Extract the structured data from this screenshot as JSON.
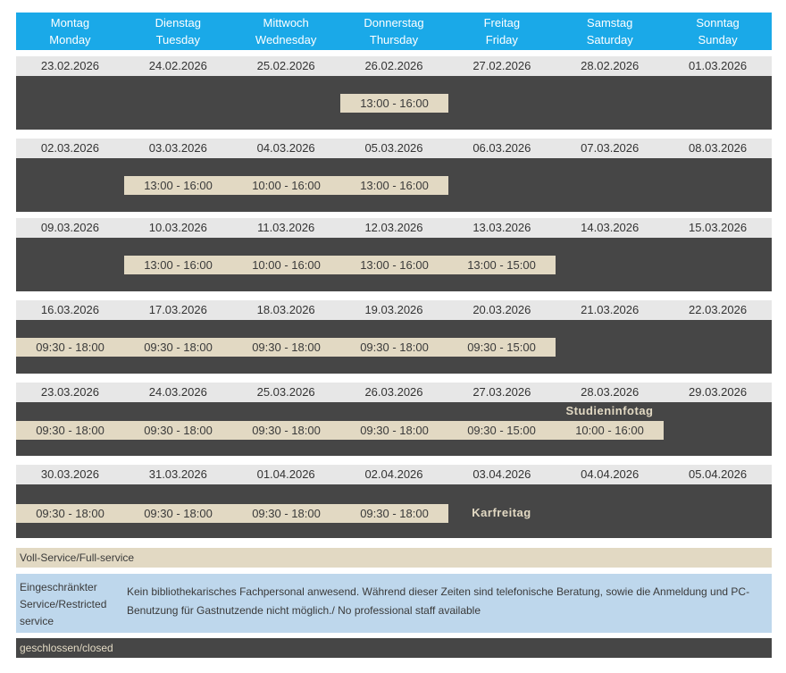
{
  "header": {
    "days": [
      {
        "de": "Montag",
        "en": "Monday"
      },
      {
        "de": "Dienstag",
        "en": "Tuesday"
      },
      {
        "de": "Mittwoch",
        "en": "Wednesday"
      },
      {
        "de": "Donnerstag",
        "en": "Thursday"
      },
      {
        "de": "Freitag",
        "en": "Friday"
      },
      {
        "de": "Samstag",
        "en": "Saturday"
      },
      {
        "de": "Sonntag",
        "en": "Sunday"
      }
    ]
  },
  "weeks": [
    {
      "dates": [
        "23.02.2026",
        "24.02.2026",
        "25.02.2026",
        "26.02.2026",
        "27.02.2026",
        "28.02.2026",
        "01.03.2026"
      ],
      "slots": [
        null,
        null,
        null,
        "13:00 - 16:00",
        null,
        null,
        null
      ],
      "notes": [
        null,
        null,
        null,
        null,
        null,
        null,
        null
      ]
    },
    {
      "dates": [
        "02.03.2026",
        "03.03.2026",
        "04.03.2026",
        "05.03.2026",
        "06.03.2026",
        "07.03.2026",
        "08.03.2026"
      ],
      "slots": [
        null,
        "13:00 - 16:00",
        "10:00 - 16:00",
        "13:00 - 16:00",
        null,
        null,
        null
      ],
      "notes": [
        null,
        null,
        null,
        null,
        null,
        null,
        null
      ]
    },
    {
      "dates": [
        "09.03.2026",
        "10.03.2026",
        "11.03.2026",
        "12.03.2026",
        "13.03.2026",
        "14.03.2026",
        "15.03.2026"
      ],
      "slots": [
        null,
        "13:00 - 16:00",
        "10:00 - 16:00",
        "13:00 - 16:00",
        "13:00 - 15:00",
        null,
        null
      ],
      "notes": [
        null,
        null,
        null,
        null,
        null,
        null,
        null
      ]
    },
    {
      "dates": [
        "16.03.2026",
        "17.03.2026",
        "18.03.2026",
        "19.03.2026",
        "20.03.2026",
        "21.03.2026",
        "22.03.2026"
      ],
      "slots": [
        "09:30 - 18:00",
        "09:30 - 18:00",
        "09:30 - 18:00",
        "09:30 - 18:00",
        "09:30 - 15:00",
        null,
        null
      ],
      "notes": [
        null,
        null,
        null,
        null,
        null,
        null,
        null
      ]
    },
    {
      "dates": [
        "23.03.2026",
        "24.03.2026",
        "25.03.2026",
        "26.03.2026",
        "27.03.2026",
        "28.03.2026",
        "29.03.2026"
      ],
      "slots": [
        "09:30 - 18:00",
        "09:30 - 18:00",
        "09:30 - 18:00",
        "09:30 - 18:00",
        "09:30 - 15:00",
        "10:00 - 16:00",
        null
      ],
      "notes": [
        null,
        null,
        null,
        null,
        null,
        "Studieninfotag",
        null
      ]
    },
    {
      "dates": [
        "30.03.2026",
        "31.03.2026",
        "01.04.2026",
        "02.04.2026",
        "03.04.2026",
        "04.04.2026",
        "05.04.2026"
      ],
      "slots": [
        "09:30 - 18:00",
        "09:30 - 18:00",
        "09:30 - 18:00",
        "09:30 - 18:00",
        null,
        null,
        null
      ],
      "notes": [
        null,
        null,
        null,
        null,
        "Karfreitag",
        null,
        null
      ]
    }
  ],
  "legend": {
    "full_service": "Voll-Service/Full-service",
    "restricted_label": "Eingeschränkter Service/Restricted service",
    "restricted_text": "Kein bibliothekarisches Fachpersonal anwesend. Während dieser Zeiten sind telefonische Beratung, sowie die Anmeldung und PC-Benutzung für Gastnutzende nicht möglich./ No professional staff available",
    "closed": "geschlossen/closed"
  },
  "colors": {
    "header_bg": "#1aa9e8",
    "date_row_bg": "#e7e7e7",
    "closed_bg": "#464646",
    "full_service_bg": "#e2d9c3",
    "restricted_bg": "#bed7ec"
  }
}
